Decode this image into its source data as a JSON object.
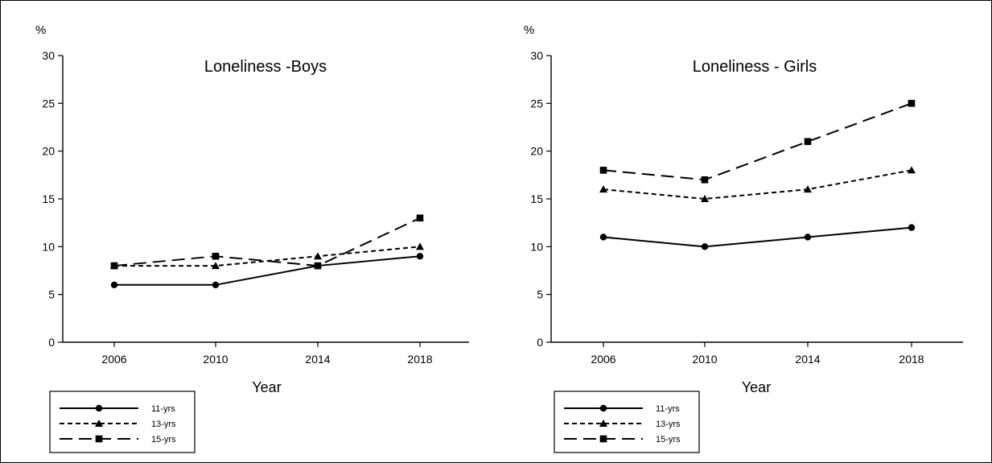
{
  "chart_data": [
    {
      "type": "line",
      "title": "Loneliness -Boys",
      "unit": "%",
      "xlabel": "Year",
      "ylabel": "",
      "categories": [
        "2006",
        "2010",
        "2014",
        "2018"
      ],
      "ylim": [
        0,
        30
      ],
      "yticks": [
        0,
        5,
        10,
        15,
        20,
        25,
        30
      ],
      "grid": false,
      "legend_position": "bottom-left",
      "series": [
        {
          "name": "11-yrs",
          "values": [
            6,
            6,
            8,
            9
          ],
          "dash": "solid",
          "marker": "circle"
        },
        {
          "name": "13-yrs",
          "values": [
            8,
            8,
            9,
            10
          ],
          "dash": "short-dash",
          "marker": "triangle"
        },
        {
          "name": "15-yrs",
          "values": [
            8,
            9,
            8,
            13
          ],
          "dash": "long-dash",
          "marker": "square"
        }
      ]
    },
    {
      "type": "line",
      "title": "Loneliness - Girls",
      "unit": "%",
      "xlabel": "Year",
      "ylabel": "",
      "categories": [
        "2006",
        "2010",
        "2014",
        "2018"
      ],
      "ylim": [
        0,
        30
      ],
      "yticks": [
        0,
        5,
        10,
        15,
        20,
        25,
        30
      ],
      "grid": false,
      "legend_position": "bottom-left",
      "series": [
        {
          "name": "11-yrs",
          "values": [
            11,
            10,
            11,
            12
          ],
          "dash": "solid",
          "marker": "circle"
        },
        {
          "name": "13-yrs",
          "values": [
            16,
            15,
            16,
            18
          ],
          "dash": "short-dash",
          "marker": "triangle"
        },
        {
          "name": "15-yrs",
          "values": [
            18,
            17,
            21,
            25
          ],
          "dash": "long-dash",
          "marker": "square"
        }
      ]
    }
  ]
}
